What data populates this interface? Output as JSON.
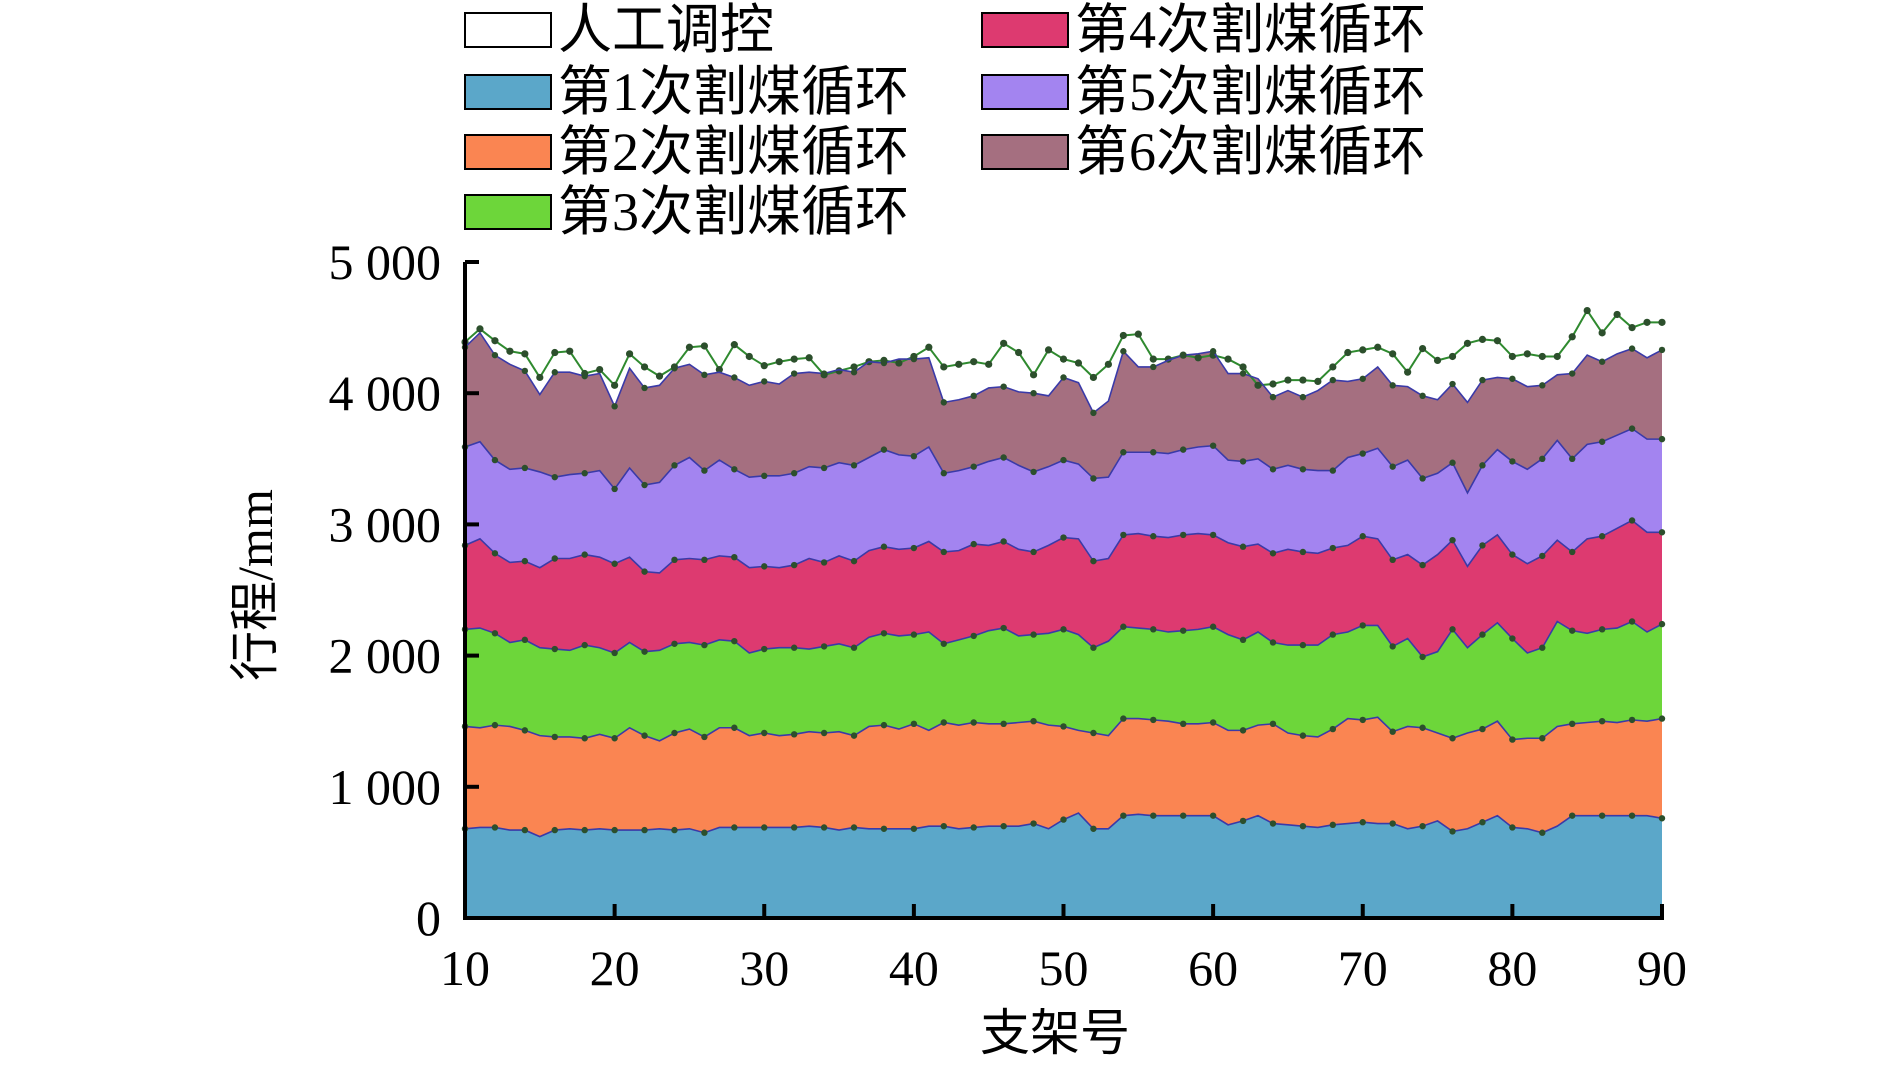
{
  "chart_data": {
    "type": "area",
    "stacked": true,
    "xlabel": "支架号",
    "ylabel": "行程/mm",
    "xlim": [
      10,
      90
    ],
    "ylim": [
      0,
      5000
    ],
    "x_ticks": [
      10,
      20,
      30,
      40,
      50,
      60,
      70,
      80,
      90
    ],
    "y_ticks": [
      0,
      1000,
      2000,
      3000,
      4000,
      5000
    ],
    "y_tick_labels": [
      "0",
      "1 000",
      "2 000",
      "3 000",
      "4 000",
      "5 000"
    ],
    "grid": false,
    "legend_position": "top",
    "x": [
      10,
      11,
      12,
      13,
      14,
      15,
      16,
      17,
      18,
      19,
      20,
      21,
      22,
      23,
      24,
      25,
      26,
      27,
      28,
      29,
      30,
      31,
      32,
      33,
      34,
      35,
      36,
      37,
      38,
      39,
      40,
      41,
      42,
      43,
      44,
      45,
      46,
      47,
      48,
      49,
      50,
      51,
      52,
      53,
      54,
      55,
      56,
      57,
      58,
      59,
      60,
      61,
      62,
      63,
      64,
      65,
      66,
      67,
      68,
      69,
      70,
      71,
      72,
      73,
      74,
      75,
      76,
      77,
      78,
      79,
      80,
      81,
      82,
      83,
      84,
      85,
      86,
      87,
      88,
      89,
      90
    ],
    "series": [
      {
        "name": "第1次割煤循环",
        "color": "#5ba7c9",
        "values": [
          680,
          690,
          690,
          670,
          670,
          620,
          670,
          680,
          670,
          680,
          670,
          670,
          670,
          680,
          670,
          680,
          650,
          690,
          690,
          690,
          690,
          690,
          690,
          700,
          690,
          670,
          690,
          680,
          680,
          680,
          680,
          700,
          700,
          680,
          690,
          700,
          700,
          700,
          720,
          680,
          750,
          800,
          680,
          680,
          780,
          790,
          780,
          780,
          780,
          780,
          780,
          710,
          740,
          780,
          720,
          710,
          700,
          690,
          710,
          720,
          730,
          720,
          720,
          680,
          700,
          740,
          660,
          680,
          730,
          780,
          690,
          680,
          650,
          700,
          780,
          780,
          780,
          780,
          780,
          780,
          760
        ]
      },
      {
        "name": "第2次割煤循环",
        "color": "#fa8552",
        "values": [
          780,
          760,
          780,
          790,
          760,
          770,
          710,
          700,
          700,
          720,
          700,
          780,
          720,
          670,
          740,
          760,
          730,
          760,
          760,
          700,
          720,
          700,
          710,
          720,
          720,
          750,
          700,
          780,
          790,
          760,
          800,
          730,
          790,
          790,
          800,
          780,
          780,
          790,
          780,
          790,
          710,
          630,
          730,
          710,
          740,
          730,
          730,
          720,
          700,
          700,
          710,
          720,
          690,
          690,
          760,
          700,
          690,
          690,
          730,
          800,
          780,
          810,
          700,
          780,
          750,
          670,
          710,
          730,
          710,
          720,
          670,
          690,
          720,
          760,
          700,
          710,
          720,
          710,
          730,
          720,
          760
        ]
      },
      {
        "name": "第3次割煤循环",
        "color": "#6dd63a",
        "values": [
          740,
          760,
          700,
          640,
          690,
          670,
          670,
          660,
          710,
          660,
          650,
          650,
          640,
          690,
          680,
          660,
          700,
          670,
          660,
          630,
          640,
          670,
          660,
          630,
          660,
          670,
          670,
          680,
          700,
          710,
          680,
          750,
          600,
          650,
          660,
          710,
          730,
          660,
          660,
          700,
          740,
          730,
          650,
          720,
          700,
          690,
          690,
          680,
          710,
          720,
          730,
          730,
          690,
          710,
          620,
          670,
          690,
          700,
          720,
          660,
          720,
          700,
          650,
          670,
          540,
          620,
          830,
          650,
          720,
          750,
          770,
          650,
          690,
          800,
          710,
          680,
          700,
          720,
          750,
          680,
          720
        ]
      },
      {
        "name": "第4次割煤循环",
        "color": "#dd3a70",
        "values": [
          640,
          680,
          610,
          610,
          600,
          610,
          690,
          700,
          690,
          690,
          680,
          650,
          610,
          590,
          640,
          640,
          650,
          640,
          640,
          650,
          630,
          610,
          630,
          690,
          640,
          670,
          660,
          660,
          660,
          660,
          660,
          690,
          700,
          680,
          700,
          650,
          660,
          660,
          630,
          670,
          700,
          730,
          660,
          630,
          700,
          720,
          710,
          720,
          730,
          730,
          700,
          700,
          710,
          670,
          680,
          730,
          710,
          700,
          660,
          660,
          680,
          660,
          660,
          640,
          700,
          740,
          680,
          620,
          680,
          670,
          640,
          680,
          700,
          620,
          600,
          720,
          710,
          760,
          770,
          760,
          700
        ]
      },
      {
        "name": "第5次割煤循环",
        "color": "#a384f0",
        "values": [
          750,
          740,
          710,
          710,
          710,
          730,
          620,
          640,
          620,
          660,
          570,
          680,
          660,
          690,
          720,
          770,
          680,
          730,
          670,
          690,
          690,
          700,
          700,
          700,
          720,
          710,
          730,
          710,
          740,
          720,
          700,
          720,
          600,
          610,
          590,
          640,
          640,
          640,
          610,
          600,
          590,
          570,
          630,
          620,
          630,
          620,
          640,
          640,
          650,
          660,
          680,
          630,
          650,
          650,
          640,
          640,
          630,
          630,
          590,
          670,
          630,
          690,
          710,
          720,
          660,
          620,
          590,
          560,
          610,
          650,
          710,
          720,
          740,
          760,
          710,
          720,
          720,
          710,
          700,
          710,
          710
        ]
      },
      {
        "name": "第6次割煤循环",
        "color": "#a56f80",
        "values": [
          760,
          830,
          800,
          800,
          740,
          590,
          800,
          780,
          740,
          740,
          630,
          760,
          740,
          740,
          740,
          710,
          730,
          670,
          700,
          700,
          720,
          700,
          760,
          720,
          720,
          710,
          710,
          730,
          660,
          730,
          740,
          680,
          540,
          540,
          540,
          560,
          540,
          560,
          600,
          540,
          630,
          620,
          500,
          580,
          770,
          650,
          650,
          710,
          720,
          710,
          720,
          660,
          670,
          610,
          550,
          570,
          550,
          610,
          690,
          580,
          570,
          620,
          620,
          560,
          630,
          560,
          600,
          690,
          650,
          550,
          630,
          630,
          560,
          500,
          650,
          680,
          610,
          620,
          610,
          620,
          680
        ]
      },
      {
        "name": "人工调控",
        "color": "#ffffff",
        "stroke": "#2f8a2f",
        "type": "line",
        "values": [
          4390,
          4490,
          4400,
          4320,
          4300,
          4120,
          4310,
          4320,
          4150,
          4180,
          4060,
          4300,
          4200,
          4130,
          4200,
          4350,
          4360,
          4180,
          4370,
          4280,
          4210,
          4240,
          4260,
          4270,
          4140,
          4170,
          4200,
          4240,
          4250,
          4230,
          4280,
          4350,
          4200,
          4220,
          4240,
          4220,
          4380,
          4310,
          4140,
          4330,
          4260,
          4230,
          4120,
          4220,
          4440,
          4450,
          4260,
          4260,
          4290,
          4270,
          4290,
          4260,
          4200,
          4060,
          4070,
          4100,
          4100,
          4090,
          4200,
          4310,
          4330,
          4350,
          4300,
          4160,
          4340,
          4250,
          4280,
          4380,
          4410,
          4400,
          4280,
          4300,
          4280,
          4280,
          4430,
          4630,
          4460,
          4600,
          4500,
          4540,
          4540
        ]
      }
    ]
  }
}
